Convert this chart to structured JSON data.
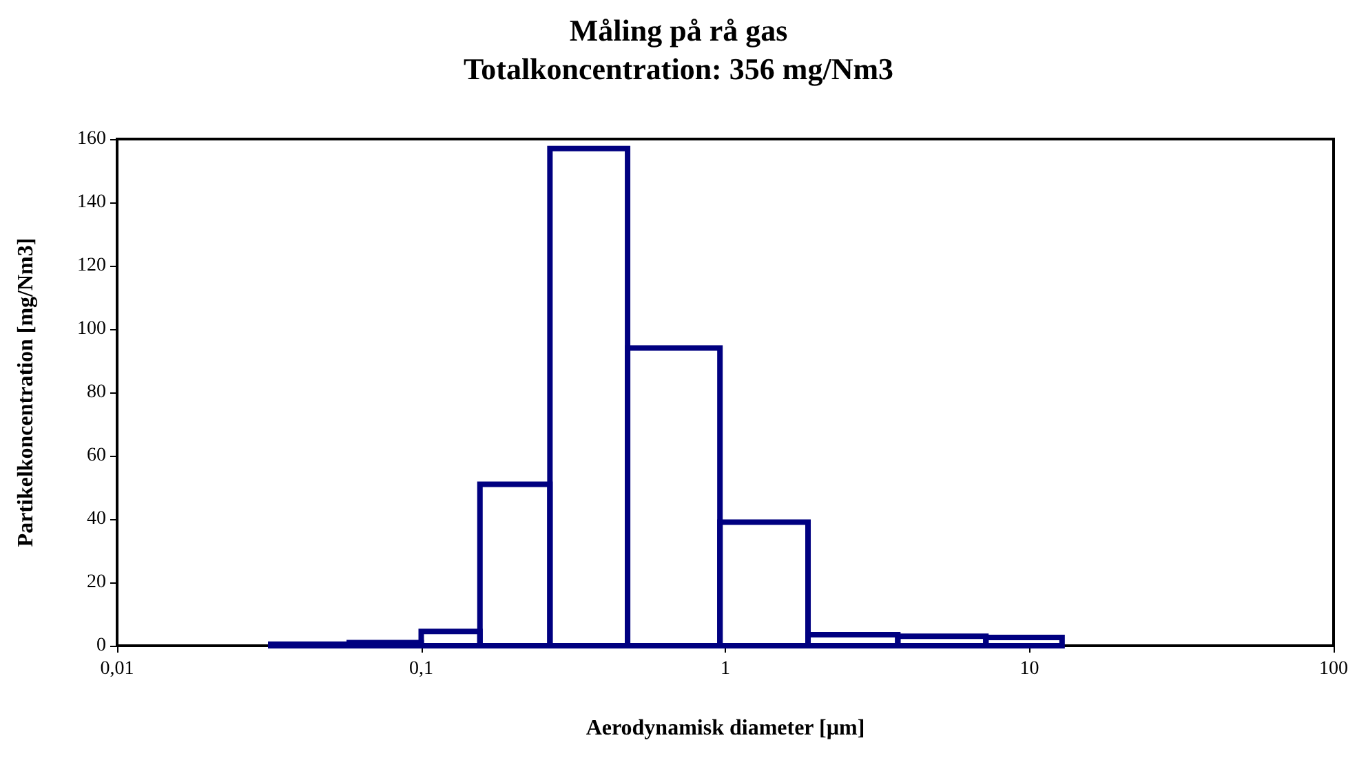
{
  "chart_data": {
    "type": "histogram",
    "title": "Måling på rå gas",
    "subtitle": "Totalkoncentration: 356 mg/Nm3",
    "xlabel": "Aerodynamisk diameter [µm]",
    "ylabel": "Partikelkoncentration [mg/Nm3]",
    "color": "#000080",
    "log": "x",
    "bins": [
      0.032,
      0.058,
      0.1,
      0.156,
      0.265,
      0.477,
      0.96,
      1.87,
      3.69,
      7.19,
      12.8
    ],
    "values": [
      0.5,
      1,
      4.5,
      51,
      157,
      94,
      39,
      3.5,
      3,
      2.6
    ],
    "xlim": [
      0.01,
      100
    ],
    "xticks": [
      {
        "value": 0.01,
        "label": "0,01"
      },
      {
        "value": 0.1,
        "label": "0,1"
      },
      1,
      10,
      100
    ],
    "ylim": [
      0,
      160
    ],
    "yticks": [
      0,
      20,
      40,
      60,
      80,
      100,
      120,
      140,
      160
    ],
    "grid": false
  }
}
